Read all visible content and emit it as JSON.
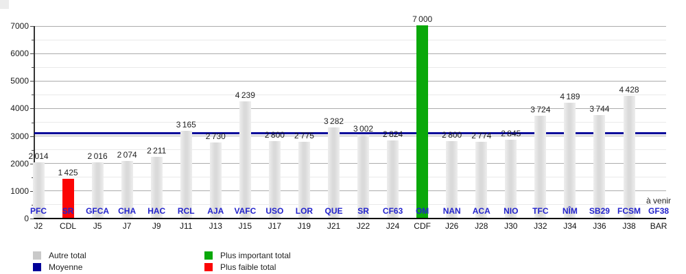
{
  "page": {
    "background": "#ffffff"
  },
  "chart_data": {
    "type": "bar",
    "title": "",
    "xlabel": "",
    "ylabel": "",
    "ylim": [
      0,
      7000
    ],
    "y_major_step": 1000,
    "y_minor_step": 500,
    "grid": "on",
    "legend_position": "bottom",
    "moyenne_line_value": 3100,
    "upcoming_note": "à venir",
    "bars": [
      {
        "matchday": "J2",
        "opponent": "PFC",
        "value": 2014,
        "label": "2 014",
        "type": "autre"
      },
      {
        "matchday": "CDL",
        "opponent": "SR",
        "value": 1425,
        "label": "1 425",
        "type": "faible"
      },
      {
        "matchday": "J5",
        "opponent": "GFCA",
        "value": 2016,
        "label": "2 016",
        "type": "autre"
      },
      {
        "matchday": "J7",
        "opponent": "CHA",
        "value": 2074,
        "label": "2 074",
        "type": "autre"
      },
      {
        "matchday": "J9",
        "opponent": "HAC",
        "value": 2211,
        "label": "2 211",
        "type": "autre"
      },
      {
        "matchday": "J11",
        "opponent": "RCL",
        "value": 3165,
        "label": "3 165",
        "type": "autre"
      },
      {
        "matchday": "J13",
        "opponent": "AJA",
        "value": 2730,
        "label": "2 730",
        "type": "autre"
      },
      {
        "matchday": "J15",
        "opponent": "VAFC",
        "value": 4239,
        "label": "4 239",
        "type": "autre"
      },
      {
        "matchday": "J17",
        "opponent": "USO",
        "value": 2800,
        "label": "2 800",
        "type": "autre"
      },
      {
        "matchday": "J19",
        "opponent": "LOR",
        "value": 2775,
        "label": "2 775",
        "type": "autre"
      },
      {
        "matchday": "J21",
        "opponent": "QUE",
        "value": 3282,
        "label": "3 282",
        "type": "autre"
      },
      {
        "matchday": "J22",
        "opponent": "SR",
        "value": 3002,
        "label": "3 002",
        "type": "autre"
      },
      {
        "matchday": "J24",
        "opponent": "CF63",
        "value": 2824,
        "label": "2 824",
        "type": "autre"
      },
      {
        "matchday": "CDF",
        "opponent": "OM",
        "value": 7000,
        "label": "7 000",
        "type": "important"
      },
      {
        "matchday": "J26",
        "opponent": "NAN",
        "value": 2800,
        "label": "2 800",
        "type": "autre"
      },
      {
        "matchday": "J28",
        "opponent": "ACA",
        "value": 2774,
        "label": "2 774",
        "type": "autre"
      },
      {
        "matchday": "J30",
        "opponent": "NIO",
        "value": 2845,
        "label": "2 845",
        "type": "autre"
      },
      {
        "matchday": "J32",
        "opponent": "TFC",
        "value": 3724,
        "label": "3 724",
        "type": "autre"
      },
      {
        "matchday": "J34",
        "opponent": "NÎM",
        "value": 4189,
        "label": "4 189",
        "type": "autre"
      },
      {
        "matchday": "J36",
        "opponent": "SB29",
        "value": 3744,
        "label": "3 744",
        "type": "autre"
      },
      {
        "matchday": "J38",
        "opponent": "FCSM",
        "value": 4428,
        "label": "4 428",
        "type": "autre"
      },
      {
        "matchday": "BAR",
        "opponent": "GF38",
        "value": null,
        "label": null,
        "type": "a_venir"
      }
    ]
  },
  "colors": {
    "autre": "#dcdcdc",
    "faible": "#fb0505",
    "important": "#0aa80a",
    "moyenne": "#000099",
    "grid_major": "#ababab",
    "grid_minor": "#e9e9e9",
    "team_label": "#2222cc"
  },
  "legend": {
    "items": [
      {
        "label": "Autre total",
        "color": "#c9c9c9"
      },
      {
        "label": "Moyenne",
        "color": "#000099"
      },
      {
        "label": "Plus important total",
        "color": "#0aa80a"
      },
      {
        "label": "Plus faible total",
        "color": "#fb0505"
      }
    ]
  }
}
